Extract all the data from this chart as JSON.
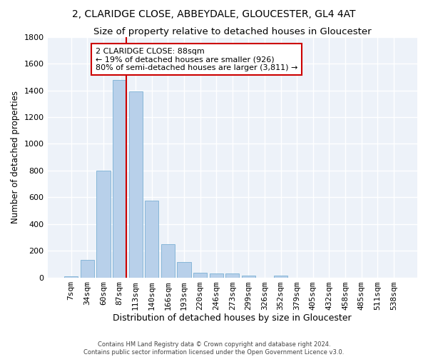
{
  "title": "2, CLARIDGE CLOSE, ABBEYDALE, GLOUCESTER, GL4 4AT",
  "subtitle": "Size of property relative to detached houses in Gloucester",
  "xlabel": "Distribution of detached houses by size in Gloucester",
  "ylabel": "Number of detached properties",
  "bar_labels": [
    "7sqm",
    "34sqm",
    "60sqm",
    "87sqm",
    "113sqm",
    "140sqm",
    "166sqm",
    "193sqm",
    "220sqm",
    "246sqm",
    "273sqm",
    "299sqm",
    "326sqm",
    "352sqm",
    "379sqm",
    "405sqm",
    "432sqm",
    "458sqm",
    "485sqm",
    "511sqm",
    "538sqm"
  ],
  "bar_values": [
    10,
    130,
    800,
    1480,
    1390,
    575,
    250,
    115,
    35,
    28,
    28,
    15,
    0,
    12,
    0,
    0,
    0,
    0,
    0,
    0,
    0
  ],
  "bar_color": "#b8d0ea",
  "bar_edgecolor": "#7aafd4",
  "background_color": "#edf2f9",
  "grid_color": "#ffffff",
  "vline_x_index": 3.42,
  "vline_color": "#cc0000",
  "annotation_text": "2 CLARIDGE CLOSE: 88sqm\n← 19% of detached houses are smaller (926)\n80% of semi-detached houses are larger (3,811) →",
  "annotation_box_color": "#cc0000",
  "footer_line1": "Contains HM Land Registry data © Crown copyright and database right 2024.",
  "footer_line2": "Contains public sector information licensed under the Open Government Licence v3.0.",
  "ylim": [
    0,
    1800
  ],
  "yticks": [
    0,
    200,
    400,
    600,
    800,
    1000,
    1200,
    1400,
    1600,
    1800
  ],
  "title_fontsize": 10,
  "subtitle_fontsize": 9.5,
  "xlabel_fontsize": 9,
  "ylabel_fontsize": 8.5,
  "tick_fontsize": 8,
  "ann_fontsize": 8
}
